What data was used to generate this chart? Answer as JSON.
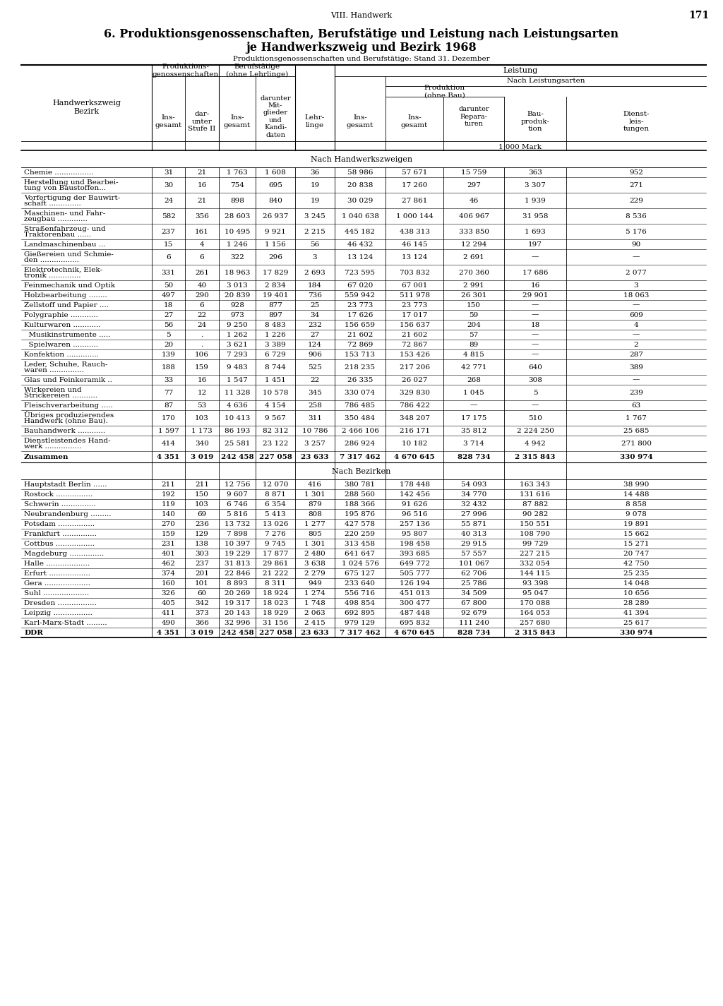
{
  "page_header": "VIII. Handwerk",
  "page_number": "171",
  "title_line1": "6. Produktionsgenossenschaften, Berufstätige und Leistung nach Leistungsarten",
  "title_line2": "je Handwerkszweig und Bezirk 1968",
  "subtitle": "Produktionsgenossenschaften und Berufstätige: Stand 31. Dezember",
  "section1_header": "Nach Handwerkszweigen",
  "section2_header": "Nach Bezirken",
  "rows_section1": [
    [
      "Chemie .................",
      "31",
      "21",
      "1 763",
      "1 608",
      "36",
      "58 986",
      "57 671",
      "15 759",
      "363",
      "952"
    ],
    [
      "Herstellung und Bearbei-\ntung von Baustoffen...",
      "30",
      "16",
      "754",
      "695",
      "19",
      "20 838",
      "17 260",
      "297",
      "3 307",
      "271"
    ],
    [
      "Vorfertigung der Bauwirt-\nschaft ..............",
      "24",
      "21",
      "898",
      "840",
      "19",
      "30 029",
      "27 861",
      "46",
      "1 939",
      "229"
    ],
    [
      "Maschinen- und Fahr-\nzeugbau .............",
      "582",
      "356",
      "28 603",
      "26 937",
      "3 245",
      "1 040 638",
      "1 000 144",
      "406 967",
      "31 958",
      "8 536"
    ],
    [
      "Straßenfahrzeug- und\nTraktorenbau ......",
      "237",
      "161",
      "10 495",
      "9 921",
      "2 215",
      "445 182",
      "438 313",
      "333 850",
      "1 693",
      "5 176"
    ],
    [
      "Landmaschinenbau ...",
      "15",
      "4",
      "1 246",
      "1 156",
      "56",
      "46 432",
      "46 145",
      "12 294",
      "197",
      "90"
    ],
    [
      "Gießereien und Schmie-\nden .................",
      "6",
      "6",
      "322",
      "296",
      "3",
      "13 124",
      "13 124",
      "2 691",
      "—",
      "—"
    ],
    [
      "Elektrotechnik, Elek-\ntronik ..............",
      "331",
      "261",
      "18 963",
      "17 829",
      "2 693",
      "723 595",
      "703 832",
      "270 360",
      "17 686",
      "2 077"
    ],
    [
      "Feinmechanik und Optik",
      "50",
      "40",
      "3 013",
      "2 834",
      "184",
      "67 020",
      "67 001",
      "2 991",
      "16",
      "3"
    ],
    [
      "Holzbearbeitung ........",
      "497",
      "290",
      "20 839",
      "19 401",
      "736",
      "559 942",
      "511 978",
      "26 301",
      "29 901",
      "18 063"
    ],
    [
      "Zellstoff und Papier ....",
      "18",
      "6",
      "928",
      "877",
      "25",
      "23 773",
      "23 773",
      "150",
      "—",
      "—"
    ],
    [
      "Polygraphie ............",
      "27",
      "22",
      "973",
      "897",
      "34",
      "17 626",
      "17 017",
      "59",
      "—",
      "609"
    ],
    [
      "Kulturwaren ............",
      "56",
      "24",
      "9 250",
      "8 483",
      "232",
      "156 659",
      "156 637",
      "204",
      "18",
      "4"
    ],
    [
      "  Musikinstrumente .....",
      "5",
      ".",
      "1 262",
      "1 226",
      "27",
      "21 602",
      "21 602",
      "57",
      "—",
      "—"
    ],
    [
      "  Spielwaren ...........",
      "20",
      ".",
      "3 621",
      "3 389",
      "124",
      "72 869",
      "72 867",
      "89",
      "—",
      "2"
    ],
    [
      "Konfektion ..............",
      "139",
      "106",
      "7 293",
      "6 729",
      "906",
      "153 713",
      "153 426",
      "4 815",
      "—",
      "287"
    ],
    [
      "Leder, Schuhe, Rauch-\nwaren ...............",
      "188",
      "159",
      "9 483",
      "8 744",
      "525",
      "218 235",
      "217 206",
      "42 771",
      "640",
      "389"
    ],
    [
      "Glas und Feinkeramik ..",
      "33",
      "16",
      "1 547",
      "1 451",
      "22",
      "26 335",
      "26 027",
      "268",
      "308",
      "—"
    ],
    [
      "Wirkereien und\nStrickereien ...........",
      "77",
      "12",
      "11 328",
      "10 578",
      "345",
      "330 074",
      "329 830",
      "1 045",
      "5",
      "239"
    ],
    [
      "Fleischverarbeitung .....",
      "87",
      "53",
      "4 636",
      "4 154",
      "258",
      "786 485",
      "786 422",
      "—",
      "—",
      "63"
    ],
    [
      "Übriges produzierendes\nHandwerk (ohne Bau).",
      "170",
      "103",
      "10 413",
      "9 567",
      "311",
      "350 484",
      "348 207",
      "17 175",
      "510",
      "1 767"
    ],
    [
      "Bauhandwerk ............",
      "1 597",
      "1 173",
      "86 193",
      "82 312",
      "10 786",
      "2 466 106",
      "216 171",
      "35 812",
      "2 224 250",
      "25 685"
    ],
    [
      "Dienstleistendes Hand-\nwerk ................",
      "414",
      "340",
      "25 581",
      "23 122",
      "3 257",
      "286 924",
      "10 182",
      "3 714",
      "4 942",
      "271 800"
    ],
    [
      "Zusammen",
      "4 351",
      "3 019",
      "242 458",
      "227 058",
      "23 633",
      "7 317 462",
      "4 670 645",
      "828 734",
      "2 315 843",
      "330 974"
    ]
  ],
  "rows_section2": [
    [
      "Hauptstadt Berlin ......",
      "211",
      "211",
      "12 756",
      "12 070",
      "416",
      "380 781",
      "178 448",
      "54 093",
      "163 343",
      "38 990"
    ],
    [
      "Rostock ................",
      "192",
      "150",
      "9 607",
      "8 871",
      "1 301",
      "288 560",
      "142 456",
      "34 770",
      "131 616",
      "14 488"
    ],
    [
      "Schwerin ...............",
      "119",
      "103",
      "6 746",
      "6 354",
      "879",
      "188 366",
      "91 626",
      "32 432",
      "87 882",
      "8 858"
    ],
    [
      "Neubrandenburg .........",
      "140",
      "69",
      "5 816",
      "5 413",
      "808",
      "195 876",
      "96 516",
      "27 996",
      "90 282",
      "9 078"
    ],
    [
      "Potsdam ................",
      "270",
      "236",
      "13 732",
      "13 026",
      "1 277",
      "427 578",
      "257 136",
      "55 871",
      "150 551",
      "19 891"
    ],
    [
      "Frankfurt ...............",
      "159",
      "129",
      "7 898",
      "7 276",
      "805",
      "220 259",
      "95 807",
      "40 313",
      "108 790",
      "15 662"
    ],
    [
      "Cottbus .................",
      "231",
      "138",
      "10 397",
      "9 745",
      "1 301",
      "313 458",
      "198 458",
      "29 915",
      "99 729",
      "15 271"
    ],
    [
      "Magdeburg ...............",
      "401",
      "303",
      "19 229",
      "17 877",
      "2 480",
      "641 647",
      "393 685",
      "57 557",
      "227 215",
      "20 747"
    ],
    [
      "Halle ...................",
      "462",
      "237",
      "31 813",
      "29 861",
      "3 638",
      "1 024 576",
      "649 772",
      "101 067",
      "332 054",
      "42 750"
    ],
    [
      "Erfurt ..................",
      "374",
      "201",
      "22 846",
      "21 222",
      "2 279",
      "675 127",
      "505 777",
      "62 706",
      "144 115",
      "25 235"
    ],
    [
      "Gera ....................",
      "160",
      "101",
      "8 893",
      "8 311",
      "949",
      "233 640",
      "126 194",
      "25 786",
      "93 398",
      "14 048"
    ],
    [
      "Suhl ....................",
      "326",
      "60",
      "20 269",
      "18 924",
      "1 274",
      "556 716",
      "451 013",
      "34 509",
      "95 047",
      "10 656"
    ],
    [
      "Dresden .................",
      "405",
      "342",
      "19 317",
      "18 023",
      "1 748",
      "498 854",
      "300 477",
      "67 800",
      "170 088",
      "28 289"
    ],
    [
      "Leipzig .................",
      "411",
      "373",
      "20 143",
      "18 929",
      "2 063",
      "692 895",
      "487 448",
      "92 679",
      "164 053",
      "41 394"
    ],
    [
      "Karl-Marx-Stadt .........",
      "490",
      "366",
      "32 996",
      "31 156",
      "2 415",
      "979 129",
      "695 832",
      "111 240",
      "257 680",
      "25 617"
    ],
    [
      "DDR",
      "4 351",
      "3 019",
      "242 458",
      "227 058",
      "23 633",
      "7 317 462",
      "4 670 645",
      "828 734",
      "2 315 843",
      "330 974"
    ]
  ]
}
